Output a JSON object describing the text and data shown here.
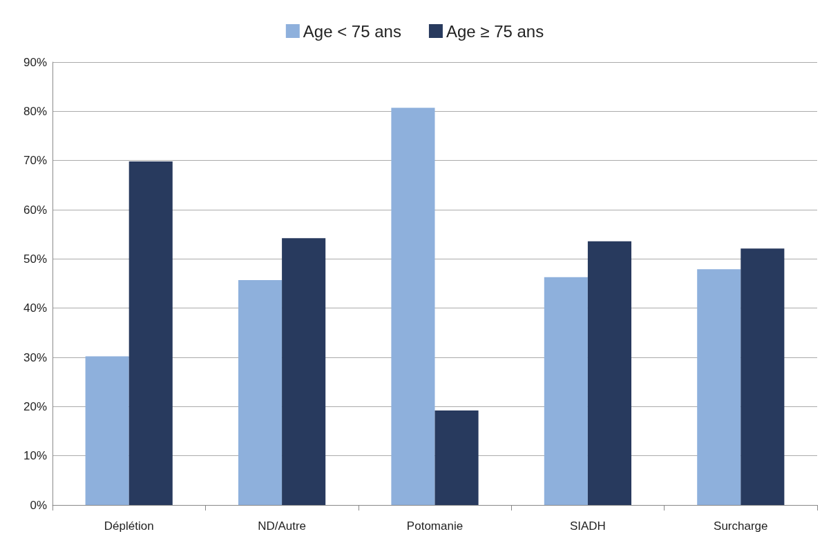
{
  "chart_data": {
    "type": "bar",
    "categories": [
      "Déplétion",
      "ND/Autre",
      "Potomanie",
      "SIADH",
      "Surcharge"
    ],
    "series": [
      {
        "name": "Age < 75 ans",
        "color": "#8eb0dc",
        "values": [
          30.2,
          45.7,
          80.7,
          46.3,
          47.9
        ]
      },
      {
        "name": "Age ≥ 75 ans",
        "color": "#283a5e",
        "values": [
          69.8,
          54.2,
          19.2,
          53.6,
          52.1
        ]
      }
    ],
    "ylim": [
      0,
      90
    ],
    "yticks": [
      {
        "value": 0,
        "label": "0%"
      },
      {
        "value": 10,
        "label": "10%"
      },
      {
        "value": 20,
        "label": "20%"
      },
      {
        "value": 30,
        "label": "30%"
      },
      {
        "value": 40,
        "label": "40%"
      },
      {
        "value": 50,
        "label": "50%"
      },
      {
        "value": 60,
        "label": "60%"
      },
      {
        "value": 70,
        "label": "70%"
      },
      {
        "value": 80,
        "label": "80%"
      },
      {
        "value": 90,
        "label": "90%"
      }
    ],
    "grid": "y",
    "legend": "top"
  }
}
